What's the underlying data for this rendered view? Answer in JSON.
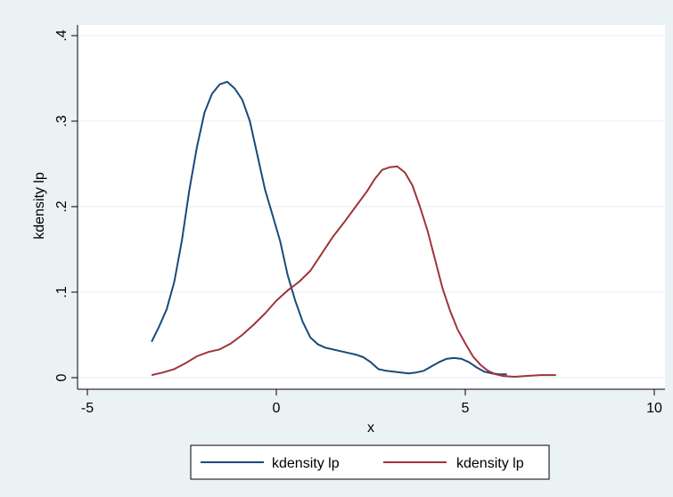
{
  "chart_data": {
    "type": "line",
    "title": "",
    "xlabel": "x",
    "ylabel": "kdensity lp",
    "xlim": [
      -5,
      10
    ],
    "ylim": [
      0,
      0.4
    ],
    "x_ticks": [
      -5,
      0,
      5,
      10
    ],
    "x_tick_labels": [
      "-5",
      "0",
      "5",
      "10"
    ],
    "y_ticks": [
      0,
      0.1,
      0.2,
      0.3,
      0.4
    ],
    "y_tick_labels": [
      "0",
      ".1",
      ".2",
      ".3",
      ".4"
    ],
    "grid": "horizontal",
    "legend_position": "bottom",
    "series": [
      {
        "name": "kdensity lp",
        "color": "#1a4a7a",
        "points": [
          [
            -3.3,
            0.042
          ],
          [
            -3.1,
            0.06
          ],
          [
            -2.9,
            0.08
          ],
          [
            -2.7,
            0.112
          ],
          [
            -2.5,
            0.16
          ],
          [
            -2.3,
            0.22
          ],
          [
            -2.1,
            0.27
          ],
          [
            -1.9,
            0.31
          ],
          [
            -1.7,
            0.332
          ],
          [
            -1.5,
            0.343
          ],
          [
            -1.3,
            0.346
          ],
          [
            -1.1,
            0.338
          ],
          [
            -0.9,
            0.325
          ],
          [
            -0.7,
            0.3
          ],
          [
            -0.5,
            0.26
          ],
          [
            -0.3,
            0.22
          ],
          [
            -0.1,
            0.19
          ],
          [
            0.1,
            0.16
          ],
          [
            0.3,
            0.12
          ],
          [
            0.5,
            0.09
          ],
          [
            0.7,
            0.065
          ],
          [
            0.9,
            0.047
          ],
          [
            1.1,
            0.039
          ],
          [
            1.3,
            0.035
          ],
          [
            1.6,
            0.032
          ],
          [
            1.9,
            0.029
          ],
          [
            2.1,
            0.027
          ],
          [
            2.3,
            0.024
          ],
          [
            2.5,
            0.018
          ],
          [
            2.7,
            0.01
          ],
          [
            2.9,
            0.008
          ],
          [
            3.1,
            0.007
          ],
          [
            3.3,
            0.006
          ],
          [
            3.5,
            0.005
          ],
          [
            3.7,
            0.006
          ],
          [
            3.9,
            0.008
          ],
          [
            4.1,
            0.013
          ],
          [
            4.3,
            0.018
          ],
          [
            4.5,
            0.022
          ],
          [
            4.7,
            0.023
          ],
          [
            4.9,
            0.022
          ],
          [
            5.1,
            0.018
          ],
          [
            5.3,
            0.012
          ],
          [
            5.5,
            0.007
          ],
          [
            5.7,
            0.005
          ],
          [
            5.9,
            0.004
          ],
          [
            6.1,
            0.004
          ]
        ]
      },
      {
        "name": "kdensity lp",
        "color": "#a0343a",
        "points": [
          [
            -3.3,
            0.003
          ],
          [
            -3.0,
            0.006
          ],
          [
            -2.7,
            0.01
          ],
          [
            -2.4,
            0.017
          ],
          [
            -2.1,
            0.025
          ],
          [
            -1.8,
            0.03
          ],
          [
            -1.5,
            0.033
          ],
          [
            -1.2,
            0.04
          ],
          [
            -0.9,
            0.05
          ],
          [
            -0.6,
            0.062
          ],
          [
            -0.3,
            0.075
          ],
          [
            0.0,
            0.09
          ],
          [
            0.3,
            0.102
          ],
          [
            0.6,
            0.112
          ],
          [
            0.9,
            0.125
          ],
          [
            1.2,
            0.145
          ],
          [
            1.5,
            0.165
          ],
          [
            1.8,
            0.182
          ],
          [
            2.1,
            0.2
          ],
          [
            2.4,
            0.218
          ],
          [
            2.6,
            0.232
          ],
          [
            2.8,
            0.243
          ],
          [
            3.0,
            0.246
          ],
          [
            3.2,
            0.247
          ],
          [
            3.4,
            0.24
          ],
          [
            3.6,
            0.225
          ],
          [
            3.8,
            0.2
          ],
          [
            4.0,
            0.172
          ],
          [
            4.2,
            0.138
          ],
          [
            4.4,
            0.104
          ],
          [
            4.6,
            0.078
          ],
          [
            4.8,
            0.056
          ],
          [
            5.0,
            0.04
          ],
          [
            5.2,
            0.025
          ],
          [
            5.4,
            0.015
          ],
          [
            5.6,
            0.008
          ],
          [
            5.8,
            0.004
          ],
          [
            6.0,
            0.002
          ],
          [
            6.3,
            0.001
          ],
          [
            6.6,
            0.002
          ],
          [
            7.0,
            0.003
          ],
          [
            7.4,
            0.003
          ]
        ]
      }
    ]
  }
}
